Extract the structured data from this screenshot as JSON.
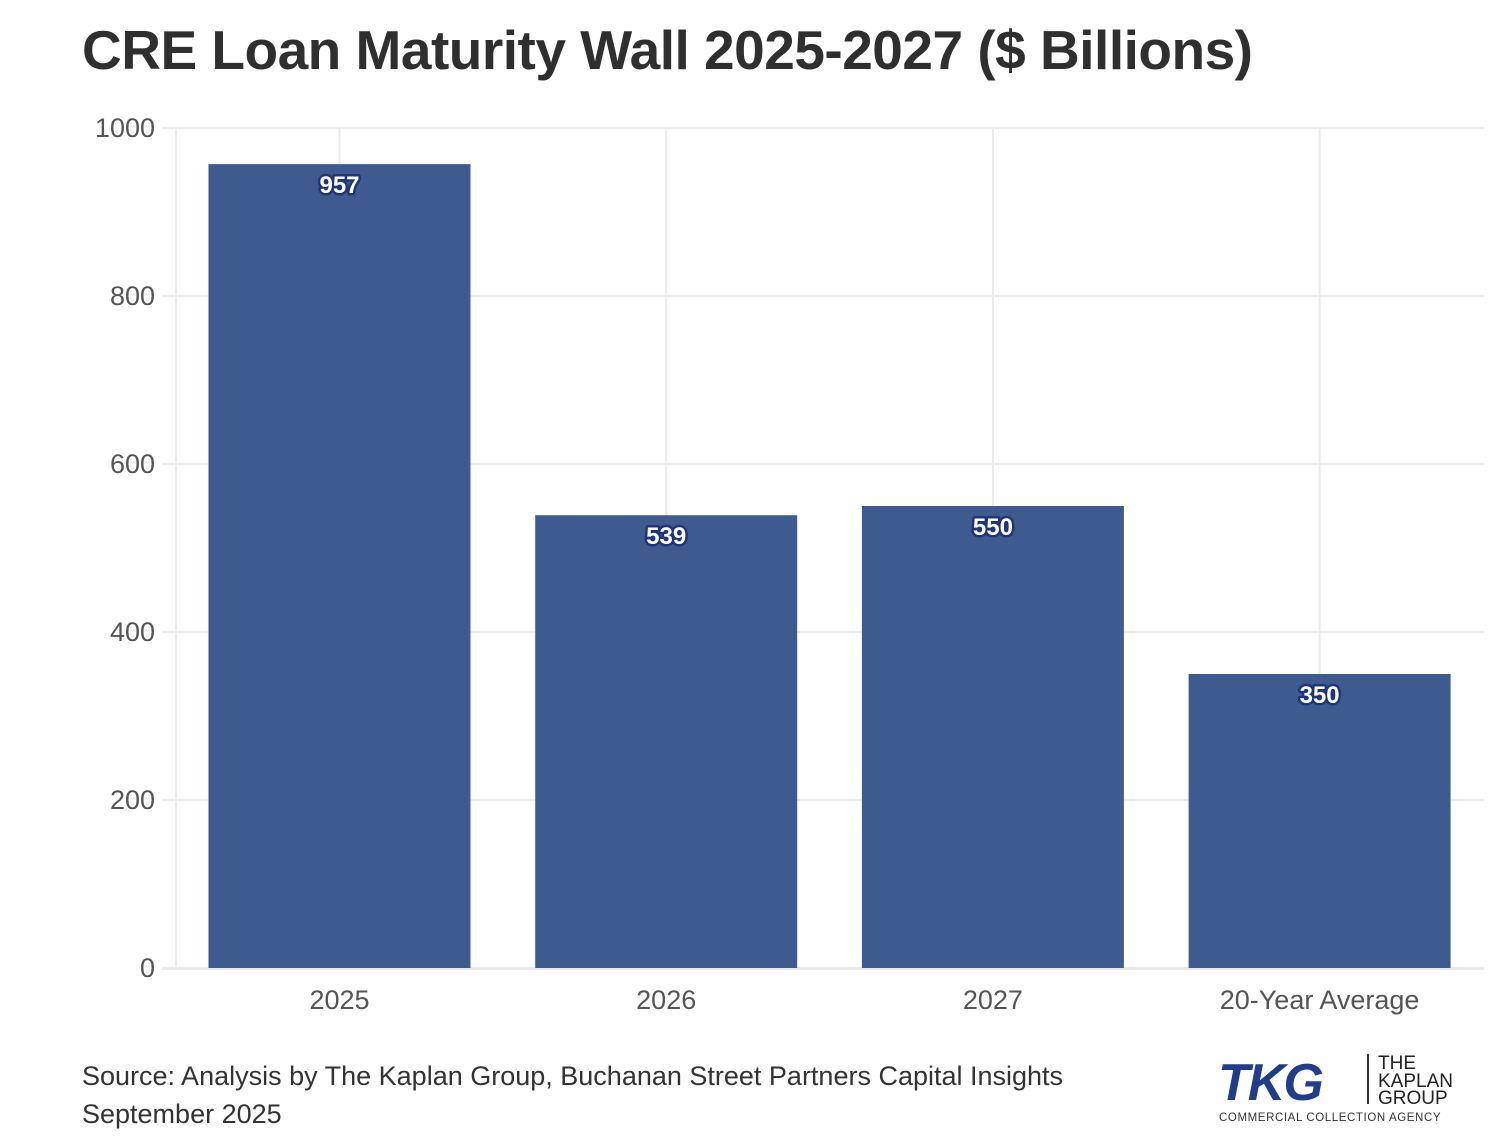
{
  "chart_data": {
    "type": "bar",
    "title": "CRE Loan Maturity Wall 2025-2027 ($ Billions)",
    "categories": [
      "2025",
      "2026",
      "2027",
      "20-Year Average"
    ],
    "values": [
      957,
      539,
      550,
      350
    ],
    "data_labels": [
      "957",
      "539",
      "550",
      "350"
    ],
    "xlabel": "",
    "ylabel": "",
    "ylim": [
      0,
      1000
    ],
    "yticks": [
      0,
      200,
      400,
      600,
      800,
      1000
    ],
    "grid": true,
    "legend": "none",
    "bar_color": "#3e5b90",
    "label_outline_color": "#1e3576"
  },
  "footer": {
    "source_line1": "Source: Analysis by The Kaplan Group, Buchanan Street Partners Capital Insights",
    "source_line2": "September 2025"
  },
  "logo": {
    "mark": "TKG",
    "line1": "THE",
    "line2": "KAPLAN",
    "line3": "GROUP",
    "tagline": "COMMERCIAL COLLECTION AGENCY",
    "color": "#1f3d8c"
  }
}
